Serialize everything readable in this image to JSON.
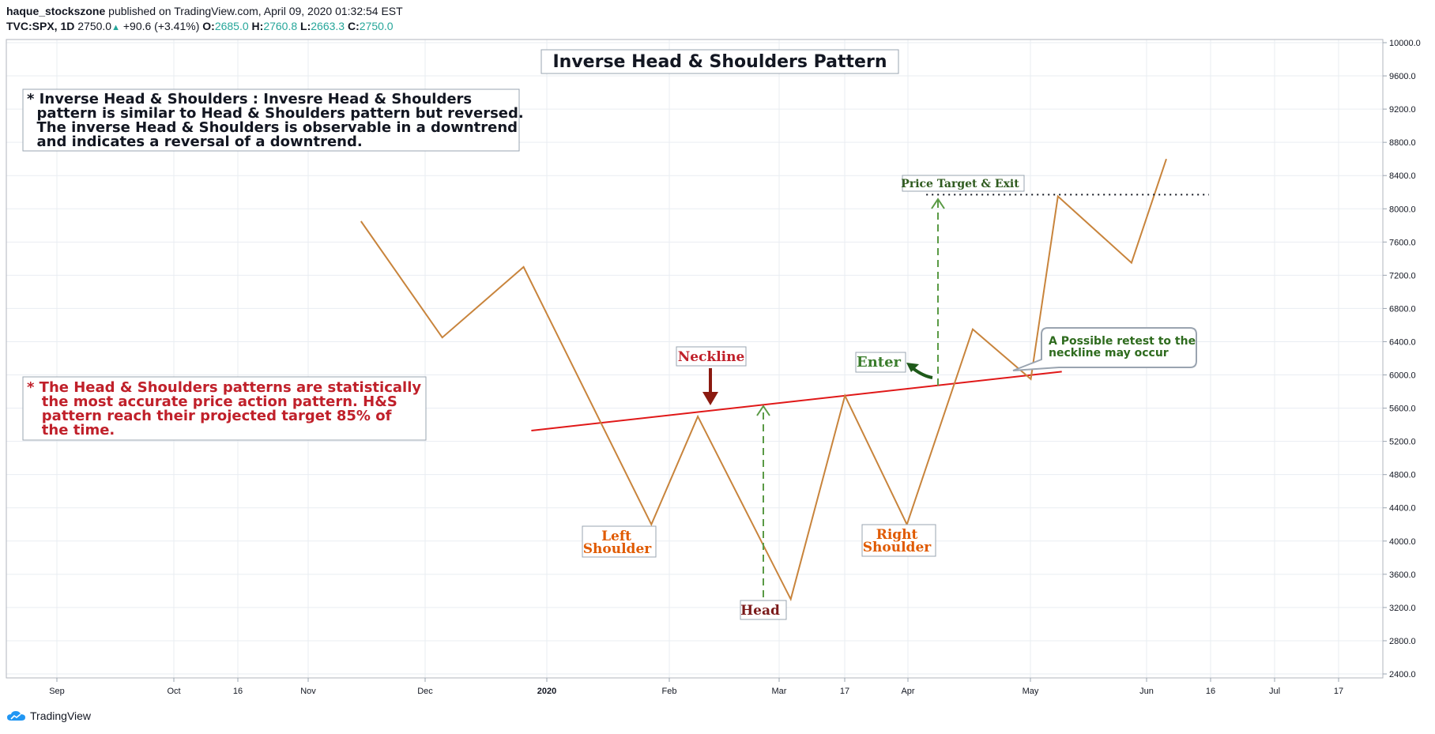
{
  "header": {
    "author": "haque_stockszone",
    "published": "published on TradingView.com, April 09, 2020 01:32:54 EST",
    "symbol": "TVC:SPX, 1D",
    "last": "2750.0",
    "change": "+90.6 (+3.41%)",
    "o_label": "O:",
    "o_value": "2685.0",
    "h_label": "H:",
    "h_value": "2760.8",
    "l_label": "L:",
    "l_value": "2663.3",
    "c_label": "C:",
    "c_value": "2750.0"
  },
  "footer": {
    "brand": "TradingView"
  },
  "colors": {
    "price": "#c8843c",
    "neckline": "#e01818",
    "green": "#3a7d2c",
    "darkred": "#7a1a1a",
    "orange": "#e05a00",
    "text_red": "#c0202a",
    "grid": "#e9edf2"
  },
  "annotations": {
    "title": "Inverse Head & Shoulders Pattern",
    "info1": [
      "* Inverse Head & Shoulders : Invesre Head & Shoulders",
      "  pattern is similar to Head & Shoulders pattern but reversed.",
      "  The inverse Head & Shoulders is observable in a downtrend",
      "  and indicates a reversal of a downtrend."
    ],
    "info2": [
      "* The Head & Shoulders patterns are statistically",
      "   the most accurate price action pattern. H&S",
      "   pattern reach their projected target 85% of",
      "   the time."
    ],
    "neckline": "Neckline",
    "head": "Head",
    "left_shoulder": [
      "Left",
      "Shoulder"
    ],
    "right_shoulder": [
      "Right",
      "Shoulder"
    ],
    "enter": "Enter",
    "target": "Price Target & Exit",
    "retest": [
      "A Possible retest to the",
      "neckline may occur"
    ]
  },
  "chart_data": {
    "type": "line",
    "y_ticks": [
      10000,
      9600,
      9200,
      8800,
      8400,
      8000,
      7600,
      7200,
      6800,
      6400,
      6000,
      5600,
      5200,
      4800,
      4400,
      4000,
      3600,
      3200,
      2800,
      2400
    ],
    "x_ticks": [
      "Sep",
      "Oct",
      "16",
      "Nov",
      "Dec",
      "2020",
      "Feb",
      "Mar",
      "17",
      "Apr",
      "May",
      "Jun",
      "16",
      "Jul",
      "17"
    ],
    "ylim": [
      2400,
      10000
    ],
    "grid": true,
    "series": [
      {
        "points": [
          {
            "x": "2019-11-14",
            "y": 7850
          },
          {
            "x": "2019-12-05",
            "y": 6450
          },
          {
            "x": "2019-12-26",
            "y": 7300
          },
          {
            "x": "2020-01-28",
            "y": 4200
          },
          {
            "x": "2020-02-09",
            "y": 5500
          },
          {
            "x": "2020-03-04",
            "y": 3300
          },
          {
            "x": "2020-03-18",
            "y": 5750
          },
          {
            "x": "2020-04-03",
            "y": 4200
          },
          {
            "x": "2020-04-20",
            "y": 6550
          },
          {
            "x": "2020-05-05",
            "y": 5950
          },
          {
            "x": "2020-05-12",
            "y": 8150
          },
          {
            "x": "2020-05-31",
            "y": 7350
          },
          {
            "x": "2020-06-09",
            "y": 8600
          }
        ]
      }
    ],
    "neckline": [
      {
        "x": "2019-12-28",
        "y": 5330
      },
      {
        "x": "2020-05-13",
        "y": 6040
      }
    ],
    "target_level": {
      "y": 8170,
      "from": "2020-04-08",
      "to": "2020-06-20"
    }
  }
}
